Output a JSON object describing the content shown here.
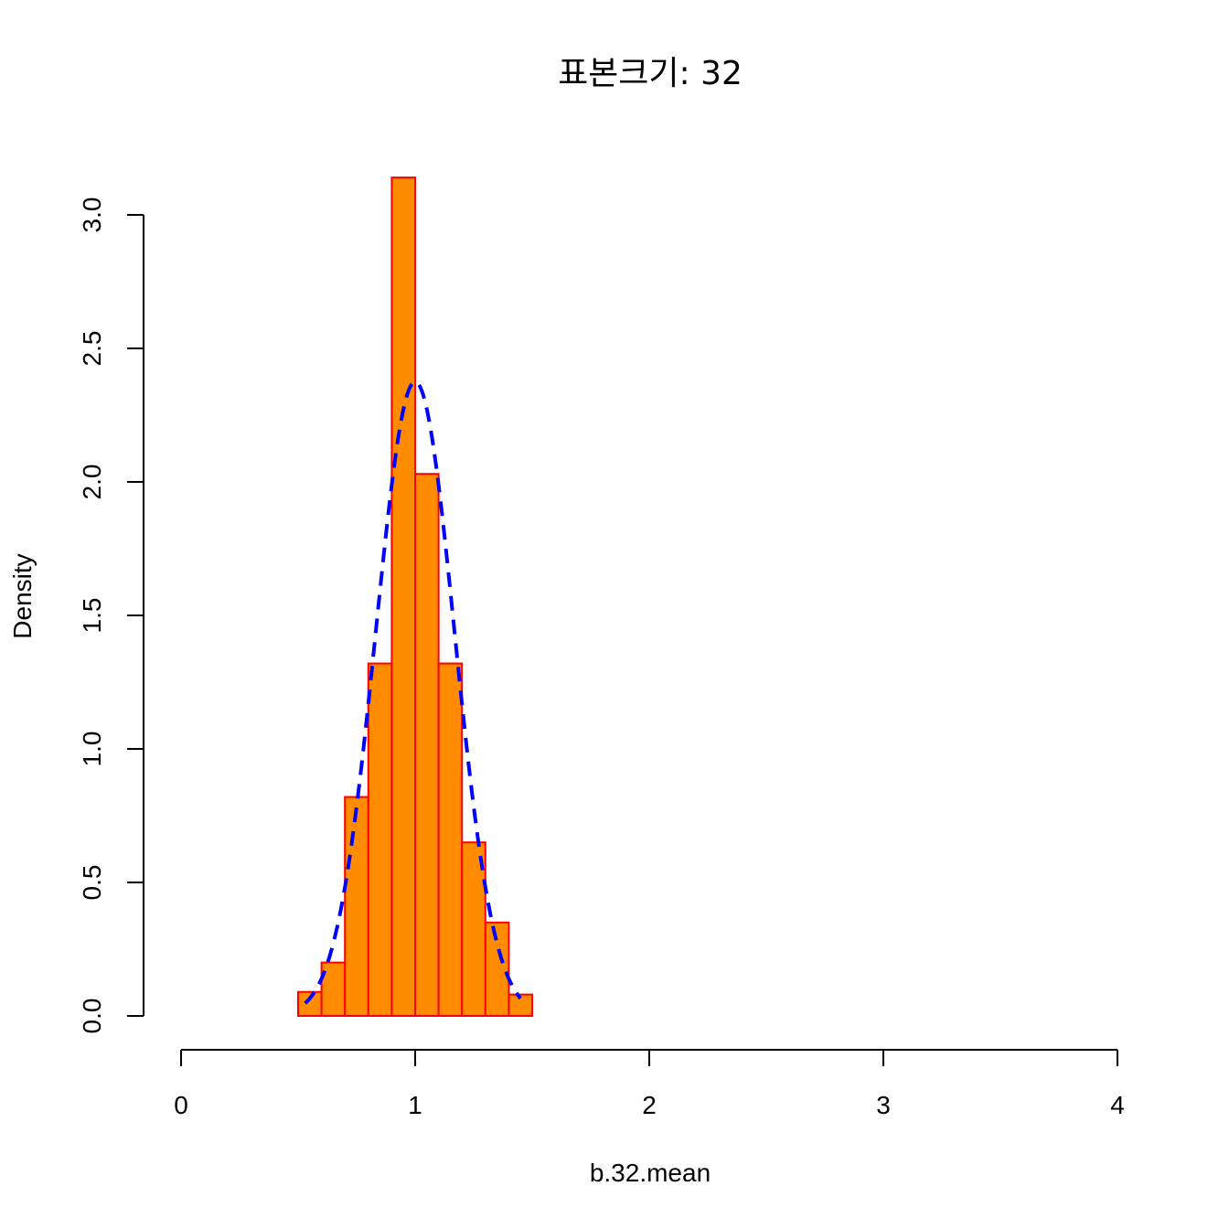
{
  "chart_data": {
    "type": "bar",
    "title": "표본크기: 32",
    "xlabel": "b.32.mean",
    "ylabel": "Density",
    "xlim": [
      0,
      4
    ],
    "ylim": [
      0,
      3.0
    ],
    "x_ticks": [
      0,
      1,
      2,
      3,
      4
    ],
    "x_tick_labels": [
      "0",
      "1",
      "2",
      "3",
      "4"
    ],
    "y_ticks": [
      0,
      0.5,
      1,
      1.5,
      2,
      2.5,
      3
    ],
    "y_tick_labels": [
      "0.0",
      "0.5",
      "1.0",
      "1.5",
      "2.0",
      "2.5",
      "3.0"
    ],
    "grid": false,
    "histogram": {
      "bin_edges": [
        0.5,
        0.6,
        0.7,
        0.8,
        0.9,
        1.0,
        1.1,
        1.2,
        1.3,
        1.4,
        1.5
      ],
      "density": [
        0.09,
        0.2,
        0.82,
        1.32,
        3.14,
        2.03,
        1.32,
        0.65,
        0.35,
        0.08
      ],
      "fill_color": "#FF8C00",
      "border_color": "#FF0000"
    },
    "density_curve": {
      "type": "normal",
      "mean": 1.0,
      "sd": 0.168,
      "x_range": [
        0.53,
        1.45
      ],
      "color": "#0000FF",
      "line_style": "dashed"
    }
  }
}
